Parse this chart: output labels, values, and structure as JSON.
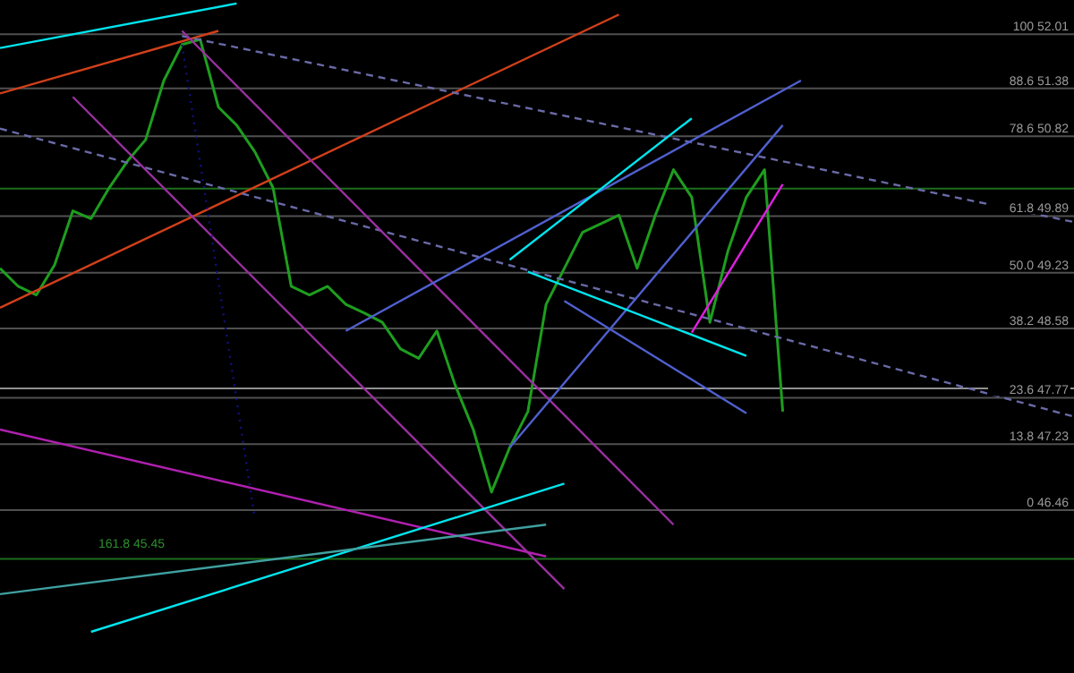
{
  "chart_data": {
    "type": "line",
    "categories": [
      null,
      null,
      null,
      null,
      null,
      null,
      null,
      null,
      null,
      null,
      null,
      null,
      null,
      null,
      null,
      null,
      null,
      null,
      null,
      null,
      null,
      null,
      null,
      null,
      null,
      null,
      null,
      null,
      null,
      null,
      null,
      null,
      null,
      null,
      null,
      null,
      null,
      null,
      null,
      null,
      null,
      null,
      null,
      null,
      null,
      null,
      null,
      null,
      null,
      null,
      null,
      null,
      null,
      null,
      null,
      null,
      null,
      null,
      null,
      null
    ],
    "ylim": [
      44.56,
      52.41
    ],
    "grid": false,
    "legend": false,
    "line_style": "solid",
    "series": [
      {
        "color": "#1e9e1e",
        "values": [
          49.28,
          49.07,
          48.97,
          49.32,
          49.95,
          49.86,
          50.22,
          50.53,
          50.78,
          51.47,
          51.89,
          51.95,
          51.16,
          50.95,
          50.64,
          50.22,
          49.07,
          48.97,
          49.07,
          48.86,
          48.76,
          48.65,
          48.34,
          48.23,
          48.55,
          47.92,
          47.4,
          46.67,
          47.19,
          47.61,
          48.86,
          49.28,
          49.7,
          49.8,
          49.9,
          49.28,
          49.9,
          50.43,
          50.11,
          48.65,
          49.49,
          50.11,
          50.43,
          47.61,
          null,
          null,
          null,
          null,
          null,
          null,
          null,
          null,
          null,
          null,
          null,
          null,
          null,
          null,
          null,
          null
        ]
      },
      {
        "color": "#00e5ee",
        "values": [
          51.85,
          null,
          null,
          null,
          null,
          null,
          null,
          null,
          null,
          null,
          null,
          null,
          null,
          52.37,
          null,
          null,
          null,
          null,
          null,
          null,
          null,
          null,
          null,
          null,
          null,
          null,
          null,
          null,
          null,
          null,
          null,
          null,
          null,
          null,
          null,
          null,
          null,
          null,
          null,
          null,
          null,
          null,
          null,
          null,
          null,
          null,
          null,
          null,
          null,
          null,
          null,
          null,
          null,
          null,
          null,
          null,
          null,
          null,
          null,
          null
        ]
      },
      {
        "color": "#d2401a",
        "values": [
          51.32,
          null,
          null,
          null,
          null,
          null,
          null,
          null,
          null,
          null,
          null,
          null,
          52.05,
          null,
          null,
          null,
          null,
          null,
          null,
          null,
          null,
          null,
          null,
          null,
          null,
          null,
          null,
          null,
          null,
          null,
          null,
          null,
          null,
          null,
          null,
          null,
          null,
          null,
          null,
          null,
          null,
          null,
          null,
          null,
          null,
          null,
          null,
          null,
          null,
          null,
          null,
          null,
          null,
          null,
          null,
          null,
          null,
          null,
          null,
          null
        ]
      },
      {
        "color": "#d2401a",
        "values": [
          48.82,
          null,
          null,
          null,
          null,
          null,
          null,
          null,
          null,
          null,
          null,
          null,
          null,
          null,
          null,
          null,
          null,
          null,
          null,
          null,
          null,
          null,
          null,
          null,
          null,
          null,
          null,
          null,
          null,
          null,
          null,
          null,
          null,
          null,
          52.24,
          null,
          null,
          null,
          null,
          null,
          null,
          null,
          null,
          null,
          null,
          null,
          null,
          null,
          null,
          null,
          null,
          null,
          null,
          null,
          null,
          null,
          null,
          null,
          null,
          null
        ]
      },
      {
        "color": "#6a6aa8",
        "line_style": "dashed",
        "values": [
          null,
          null,
          null,
          null,
          null,
          null,
          null,
          null,
          null,
          null,
          51.99,
          null,
          null,
          null,
          null,
          null,
          null,
          null,
          null,
          null,
          null,
          null,
          null,
          null,
          null,
          null,
          null,
          null,
          null,
          null,
          null,
          null,
          null,
          null,
          null,
          null,
          null,
          null,
          null,
          null,
          null,
          null,
          null,
          null,
          null,
          null,
          null,
          null,
          null,
          null,
          null,
          null,
          null,
          null,
          null,
          null,
          null,
          null,
          null,
          49.82
        ]
      },
      {
        "color": "#6a6aa8",
        "line_style": "dashed",
        "values": [
          50.91,
          null,
          null,
          null,
          null,
          null,
          null,
          null,
          null,
          null,
          null,
          null,
          null,
          null,
          null,
          null,
          null,
          null,
          null,
          null,
          null,
          null,
          null,
          null,
          null,
          null,
          null,
          null,
          null,
          null,
          null,
          null,
          null,
          null,
          null,
          null,
          null,
          null,
          null,
          null,
          null,
          null,
          null,
          null,
          null,
          null,
          null,
          null,
          null,
          null,
          null,
          null,
          null,
          null,
          null,
          null,
          null,
          null,
          null,
          47.55
        ]
      },
      {
        "color": "#9a30a0",
        "values": [
          null,
          null,
          null,
          null,
          51.28,
          null,
          null,
          null,
          null,
          null,
          null,
          null,
          null,
          null,
          null,
          null,
          null,
          null,
          null,
          null,
          null,
          null,
          null,
          null,
          null,
          null,
          null,
          null,
          null,
          null,
          null,
          45.54,
          null,
          null,
          null,
          null,
          null,
          null,
          null,
          null,
          null,
          null,
          null,
          null,
          null,
          null,
          null,
          null,
          null,
          null,
          null,
          null,
          null,
          null,
          null,
          null,
          null,
          null,
          null,
          null
        ]
      },
      {
        "color": "#9a30a0",
        "values": [
          null,
          null,
          null,
          null,
          null,
          null,
          null,
          null,
          null,
          null,
          52.05,
          null,
          null,
          null,
          null,
          null,
          null,
          null,
          null,
          null,
          null,
          null,
          null,
          null,
          null,
          null,
          null,
          null,
          null,
          null,
          null,
          null,
          null,
          null,
          null,
          null,
          null,
          46.29,
          null,
          null,
          null,
          null,
          null,
          null,
          null,
          null,
          null,
          null,
          null,
          null,
          null,
          null,
          null,
          null,
          null,
          null,
          null,
          null,
          null,
          null
        ]
      },
      {
        "color": "#b020b0",
        "values": [
          47.4,
          null,
          null,
          null,
          null,
          null,
          null,
          null,
          null,
          null,
          null,
          null,
          null,
          null,
          null,
          null,
          null,
          null,
          null,
          null,
          null,
          null,
          null,
          null,
          null,
          null,
          null,
          null,
          null,
          null,
          45.92,
          null,
          null,
          null,
          null,
          null,
          null,
          null,
          null,
          null,
          null,
          null,
          null,
          null,
          null,
          null,
          null,
          null,
          null,
          null,
          null,
          null,
          null,
          null,
          null,
          null,
          null,
          null,
          null,
          null
        ]
      },
      {
        "color": "#101080",
        "line_style": "dotted",
        "values": [
          null,
          null,
          null,
          null,
          null,
          null,
          null,
          null,
          null,
          null,
          51.89,
          null,
          null,
          null,
          46.36,
          null,
          null,
          null,
          null,
          null,
          null,
          null,
          null,
          null,
          null,
          null,
          null,
          null,
          null,
          null,
          null,
          null,
          null,
          null,
          null,
          null,
          null,
          null,
          null,
          null,
          null,
          null,
          null,
          null,
          null,
          null,
          null,
          null,
          null,
          null,
          null,
          null,
          null,
          null,
          null,
          null,
          null,
          null,
          null,
          null
        ]
      },
      {
        "color": "#00e5ee",
        "values": [
          null,
          null,
          null,
          null,
          null,
          45.04,
          null,
          null,
          null,
          null,
          null,
          null,
          null,
          null,
          null,
          null,
          null,
          null,
          null,
          null,
          null,
          null,
          null,
          null,
          null,
          null,
          null,
          null,
          null,
          null,
          null,
          46.77,
          null,
          null,
          null,
          null,
          null,
          null,
          null,
          null,
          null,
          null,
          null,
          null,
          null,
          null,
          null,
          null,
          null,
          null,
          null,
          null,
          null,
          null,
          null,
          null,
          null,
          null,
          null,
          null
        ]
      },
      {
        "color": "#40a0a0",
        "values": [
          45.48,
          null,
          null,
          null,
          null,
          null,
          null,
          null,
          null,
          null,
          null,
          null,
          null,
          null,
          null,
          null,
          null,
          null,
          null,
          null,
          null,
          null,
          null,
          null,
          null,
          null,
          null,
          null,
          null,
          null,
          46.29,
          null,
          null,
          null,
          null,
          null,
          null,
          null,
          null,
          null,
          null,
          null,
          null,
          null,
          null,
          null,
          null,
          null,
          null,
          null,
          null,
          null,
          null,
          null,
          null,
          null,
          null,
          null,
          null,
          null
        ]
      },
      {
        "color": "#5060d0",
        "values": [
          null,
          null,
          null,
          null,
          null,
          null,
          null,
          null,
          null,
          null,
          null,
          null,
          null,
          null,
          null,
          null,
          null,
          null,
          null,
          48.55,
          null,
          null,
          null,
          null,
          null,
          null,
          null,
          null,
          null,
          null,
          null,
          null,
          null,
          null,
          null,
          null,
          null,
          null,
          null,
          null,
          null,
          null,
          null,
          null,
          51.47,
          null,
          null,
          null,
          null,
          null,
          null,
          null,
          null,
          null,
          null,
          null,
          null,
          null,
          null,
          null
        ]
      },
      {
        "color": "#5060d0",
        "values": [
          null,
          null,
          null,
          null,
          null,
          null,
          null,
          null,
          null,
          null,
          null,
          null,
          null,
          null,
          null,
          null,
          null,
          null,
          null,
          null,
          null,
          null,
          null,
          null,
          null,
          null,
          null,
          null,
          47.19,
          null,
          null,
          null,
          null,
          null,
          null,
          null,
          null,
          null,
          null,
          null,
          null,
          null,
          null,
          50.95,
          null,
          null,
          null,
          null,
          null,
          null,
          null,
          null,
          null,
          null,
          null,
          null,
          null,
          null,
          null,
          null
        ]
      },
      {
        "color": "#5060d0",
        "values": [
          null,
          null,
          null,
          null,
          null,
          null,
          null,
          null,
          null,
          null,
          null,
          null,
          null,
          null,
          null,
          null,
          null,
          null,
          null,
          null,
          null,
          null,
          null,
          null,
          null,
          null,
          null,
          null,
          null,
          null,
          null,
          48.9,
          null,
          null,
          null,
          null,
          null,
          null,
          null,
          null,
          null,
          47.59,
          null,
          null,
          null,
          null,
          null,
          null,
          null,
          null,
          null,
          null,
          null,
          null,
          null,
          null,
          null,
          null,
          null,
          null
        ]
      },
      {
        "color": "#00e5ee",
        "values": [
          null,
          null,
          null,
          null,
          null,
          null,
          null,
          null,
          null,
          null,
          null,
          null,
          null,
          null,
          null,
          null,
          null,
          null,
          null,
          null,
          null,
          null,
          null,
          null,
          null,
          null,
          null,
          null,
          49.38,
          null,
          null,
          null,
          null,
          null,
          null,
          null,
          null,
          null,
          51.03,
          null,
          null,
          null,
          null,
          null,
          null,
          null,
          null,
          null,
          null,
          null,
          null,
          null,
          null,
          null,
          null,
          null,
          null,
          null,
          null,
          null
        ]
      },
      {
        "color": "#00e5ee",
        "values": [
          null,
          null,
          null,
          null,
          null,
          null,
          null,
          null,
          null,
          null,
          null,
          null,
          null,
          null,
          null,
          null,
          null,
          null,
          null,
          null,
          null,
          null,
          null,
          null,
          null,
          null,
          null,
          null,
          null,
          49.24,
          null,
          null,
          null,
          null,
          null,
          null,
          null,
          null,
          null,
          null,
          null,
          48.26,
          null,
          null,
          null,
          null,
          null,
          null,
          null,
          null,
          null,
          null,
          null,
          null,
          null,
          null,
          null,
          null,
          null,
          null
        ]
      },
      {
        "color": "#e020e0",
        "values": [
          null,
          null,
          null,
          null,
          null,
          null,
          null,
          null,
          null,
          null,
          null,
          null,
          null,
          null,
          null,
          null,
          null,
          null,
          null,
          null,
          null,
          null,
          null,
          null,
          null,
          null,
          null,
          null,
          null,
          null,
          null,
          null,
          null,
          null,
          null,
          null,
          null,
          null,
          48.53,
          null,
          null,
          null,
          null,
          50.26,
          null,
          null,
          null,
          null,
          null,
          null,
          null,
          null,
          null,
          null,
          null,
          null,
          null,
          null,
          null,
          null
        ]
      }
    ],
    "ref_lines": [
      {
        "axis": "y",
        "value": 52.01,
        "label": "100 52.01",
        "color": "#505050"
      },
      {
        "axis": "y",
        "value": 51.38,
        "label": "88.6 51.38",
        "color": "#505050"
      },
      {
        "axis": "y",
        "value": 50.82,
        "label": "78.6 50.82",
        "color": "#505050"
      },
      {
        "axis": "y",
        "value": 49.89,
        "label": "61.8 49.89",
        "color": "#505050"
      },
      {
        "axis": "y",
        "value": 49.23,
        "label": "50.0 49.23",
        "color": "#505050"
      },
      {
        "axis": "y",
        "value": 48.58,
        "label": "38.2 48.58",
        "color": "#505050"
      },
      {
        "axis": "y",
        "value": 47.77,
        "label": "23.6 47.77",
        "color": "#505050"
      },
      {
        "axis": "y",
        "value": 47.23,
        "label": "13.8 47.23",
        "color": "#505050"
      },
      {
        "axis": "y",
        "value": 46.46,
        "label": "0 46.46",
        "color": "#505050"
      },
      {
        "axis": "y",
        "value": 47.88,
        "label": null,
        "color": "#909090"
      },
      {
        "axis": "y",
        "value": 50.21,
        "label": null,
        "color": "#1e6e1e"
      },
      {
        "axis": "y",
        "value": 45.89,
        "label": null,
        "color": "#1e6e1e"
      }
    ],
    "annotations": [
      "161.8 45.45"
    ]
  }
}
